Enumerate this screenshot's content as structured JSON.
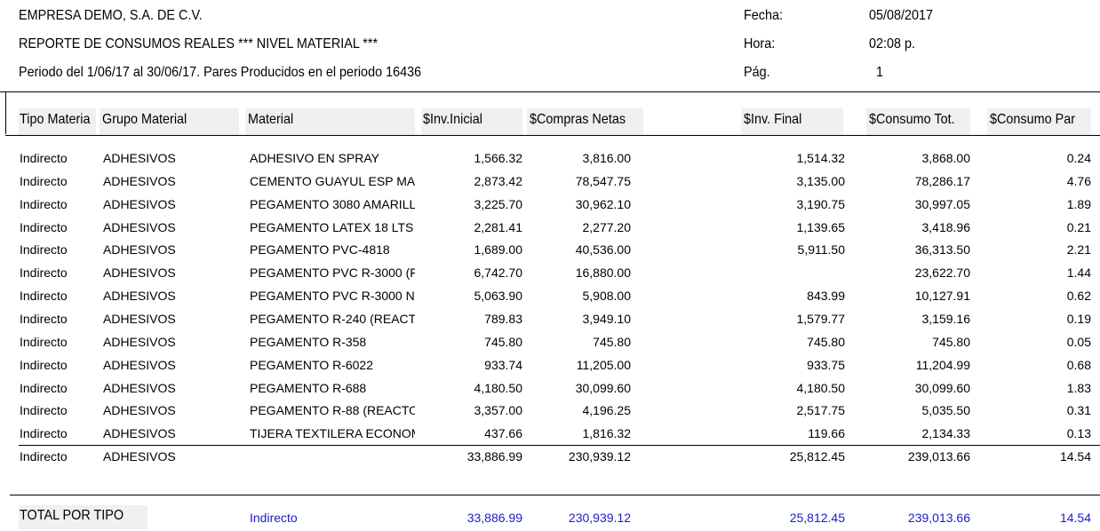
{
  "header": {
    "company": "EMPRESA DEMO, S.A. DE C.V.",
    "report_title": "REPORTE DE CONSUMOS REALES *** NIVEL MATERIAL ***",
    "period": "Periodo del  1/06/17 al 30/06/17.  Pares Producidos en el periodo 16436",
    "fecha_label": "Fecha:",
    "fecha_value": "05/08/2017",
    "hora_label": "Hora:",
    "hora_value": "02:08 p.",
    "pag_label": "Pág.",
    "pag_value": "1"
  },
  "columns": {
    "tipo": "Tipo Materia",
    "grupo": "Grupo Material",
    "material": "Material",
    "inv_inicial": "$Inv.Inicial",
    "compras": "$Compras Netas",
    "inv_final": "$Inv. Final",
    "consumo_tot": "$Consumo Tot.",
    "consumo_par": "$Consumo Par"
  },
  "rows": [
    {
      "tipo": "Indirecto",
      "grupo": "ADHESIVOS",
      "material": "ADHESIVO EN SPRAY",
      "inv_inicial": "1,566.32",
      "compras": "3,816.00",
      "inv_final": "1,514.32",
      "consumo_tot": "3,868.00",
      "consumo_par": "0.24"
    },
    {
      "tipo": "Indirecto",
      "grupo": "ADHESIVOS",
      "material": "CEMENTO GUAYUL ESP MA",
      "inv_inicial": "2,873.42",
      "compras": "78,547.75",
      "inv_final": "3,135.00",
      "consumo_tot": "78,286.17",
      "consumo_par": "4.76"
    },
    {
      "tipo": "Indirecto",
      "grupo": "ADHESIVOS",
      "material": "PEGAMENTO 3080 AMARILL",
      "inv_inicial": "3,225.70",
      "compras": "30,962.10",
      "inv_final": "3,190.75",
      "consumo_tot": "30,997.05",
      "consumo_par": "1.89"
    },
    {
      "tipo": "Indirecto",
      "grupo": "ADHESIVOS",
      "material": "PEGAMENTO LATEX 18 LTS",
      "inv_inicial": "2,281.41",
      "compras": "2,277.20",
      "inv_final": "1,139.65",
      "consumo_tot": "3,418.96",
      "consumo_par": "0.21"
    },
    {
      "tipo": "Indirecto",
      "grupo": "ADHESIVOS",
      "material": "PEGAMENTO PVC-4818",
      "inv_inicial": "1,689.00",
      "compras": "40,536.00",
      "inv_final": "5,911.50",
      "consumo_tot": "36,313.50",
      "consumo_par": "2.21"
    },
    {
      "tipo": "Indirecto",
      "grupo": "ADHESIVOS",
      "material": "PEGAMENTO PVC R-3000 (F",
      "inv_inicial": "6,742.70",
      "compras": "16,880.00",
      "inv_final": "",
      "consumo_tot": "23,622.70",
      "consumo_par": "1.44"
    },
    {
      "tipo": "Indirecto",
      "grupo": "ADHESIVOS",
      "material": "PEGAMENTO PVC R-3000 N",
      "inv_inicial": "5,063.90",
      "compras": "5,908.00",
      "inv_final": "843.99",
      "consumo_tot": "10,127.91",
      "consumo_par": "0.62"
    },
    {
      "tipo": "Indirecto",
      "grupo": "ADHESIVOS",
      "material": "PEGAMENTO R-240 (REACT",
      "inv_inicial": "789.83",
      "compras": "3,949.10",
      "inv_final": "1,579.77",
      "consumo_tot": "3,159.16",
      "consumo_par": "0.19"
    },
    {
      "tipo": "Indirecto",
      "grupo": "ADHESIVOS",
      "material": "PEGAMENTO R-358",
      "inv_inicial": "745.80",
      "compras": "745.80",
      "inv_final": "745.80",
      "consumo_tot": "745.80",
      "consumo_par": "0.05"
    },
    {
      "tipo": "Indirecto",
      "grupo": "ADHESIVOS",
      "material": "PEGAMENTO R-6022",
      "inv_inicial": "933.74",
      "compras": "11,205.00",
      "inv_final": "933.75",
      "consumo_tot": "11,204.99",
      "consumo_par": "0.68"
    },
    {
      "tipo": "Indirecto",
      "grupo": "ADHESIVOS",
      "material": "PEGAMENTO R-688",
      "inv_inicial": "4,180.50",
      "compras": "30,099.60",
      "inv_final": "4,180.50",
      "consumo_tot": "30,099.60",
      "consumo_par": "1.83"
    },
    {
      "tipo": "Indirecto",
      "grupo": "ADHESIVOS",
      "material": "PEGAMENTO R-88 (REACTO",
      "inv_inicial": "3,357.00",
      "compras": "4,196.25",
      "inv_final": "2,517.75",
      "consumo_tot": "5,035.50",
      "consumo_par": "0.31"
    },
    {
      "tipo": "Indirecto",
      "grupo": "ADHESIVOS",
      "material": "TIJERA TEXTILERA ECONOM",
      "inv_inicial": "437.66",
      "compras": "1,816.32",
      "inv_final": "119.66",
      "consumo_tot": "2,134.33",
      "consumo_par": "0.13"
    }
  ],
  "subtotal": {
    "tipo": "Indirecto",
    "grupo": "ADHESIVOS",
    "material": "",
    "inv_inicial": "33,886.99",
    "compras": "230,939.12",
    "inv_final": "25,812.45",
    "consumo_tot": "239,013.66",
    "consumo_par": "14.54"
  },
  "total": {
    "label": "TOTAL POR TIPO",
    "tipo": "Indirecto",
    "inv_inicial": "33,886.99",
    "compras": "230,939.12",
    "inv_final": "25,812.45",
    "consumo_tot": "239,013.66",
    "consumo_par": "14.54"
  },
  "colors": {
    "total_text": "#1a1acc",
    "header_bg": "#f0f0f0"
  }
}
